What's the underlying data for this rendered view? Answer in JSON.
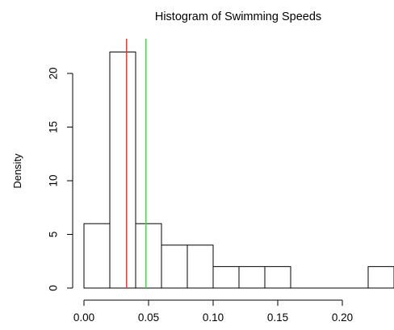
{
  "chart_data": {
    "type": "bar",
    "title": "Histogram of Swimming Speeds",
    "xlabel": "",
    "ylabel": "Density",
    "xlim": [
      0.0,
      0.24
    ],
    "ylim": [
      0,
      22
    ],
    "bins": [
      {
        "x0": 0.0,
        "x1": 0.02,
        "density": 6
      },
      {
        "x0": 0.02,
        "x1": 0.04,
        "density": 22
      },
      {
        "x0": 0.04,
        "x1": 0.06,
        "density": 6
      },
      {
        "x0": 0.06,
        "x1": 0.08,
        "density": 4
      },
      {
        "x0": 0.08,
        "x1": 0.1,
        "density": 4
      },
      {
        "x0": 0.1,
        "x1": 0.12,
        "density": 2
      },
      {
        "x0": 0.12,
        "x1": 0.14,
        "density": 2
      },
      {
        "x0": 0.14,
        "x1": 0.16,
        "density": 2
      },
      {
        "x0": 0.16,
        "x1": 0.18,
        "density": 0
      },
      {
        "x0": 0.18,
        "x1": 0.2,
        "density": 0
      },
      {
        "x0": 0.2,
        "x1": 0.22,
        "density": 0
      },
      {
        "x0": 0.22,
        "x1": 0.24,
        "density": 2
      }
    ],
    "xticks": [
      0.0,
      0.05,
      0.1,
      0.15,
      0.2
    ],
    "xtick_labels": [
      "0.00",
      "0.05",
      "0.10",
      "0.15",
      "0.20"
    ],
    "yticks": [
      0,
      5,
      10,
      15,
      20
    ],
    "ytick_labels": [
      "0",
      "5",
      "10",
      "15",
      "20"
    ],
    "reference_lines": [
      {
        "x": 0.033,
        "color": "#e03030"
      },
      {
        "x": 0.048,
        "color": "#40d040"
      }
    ],
    "grid": false
  }
}
